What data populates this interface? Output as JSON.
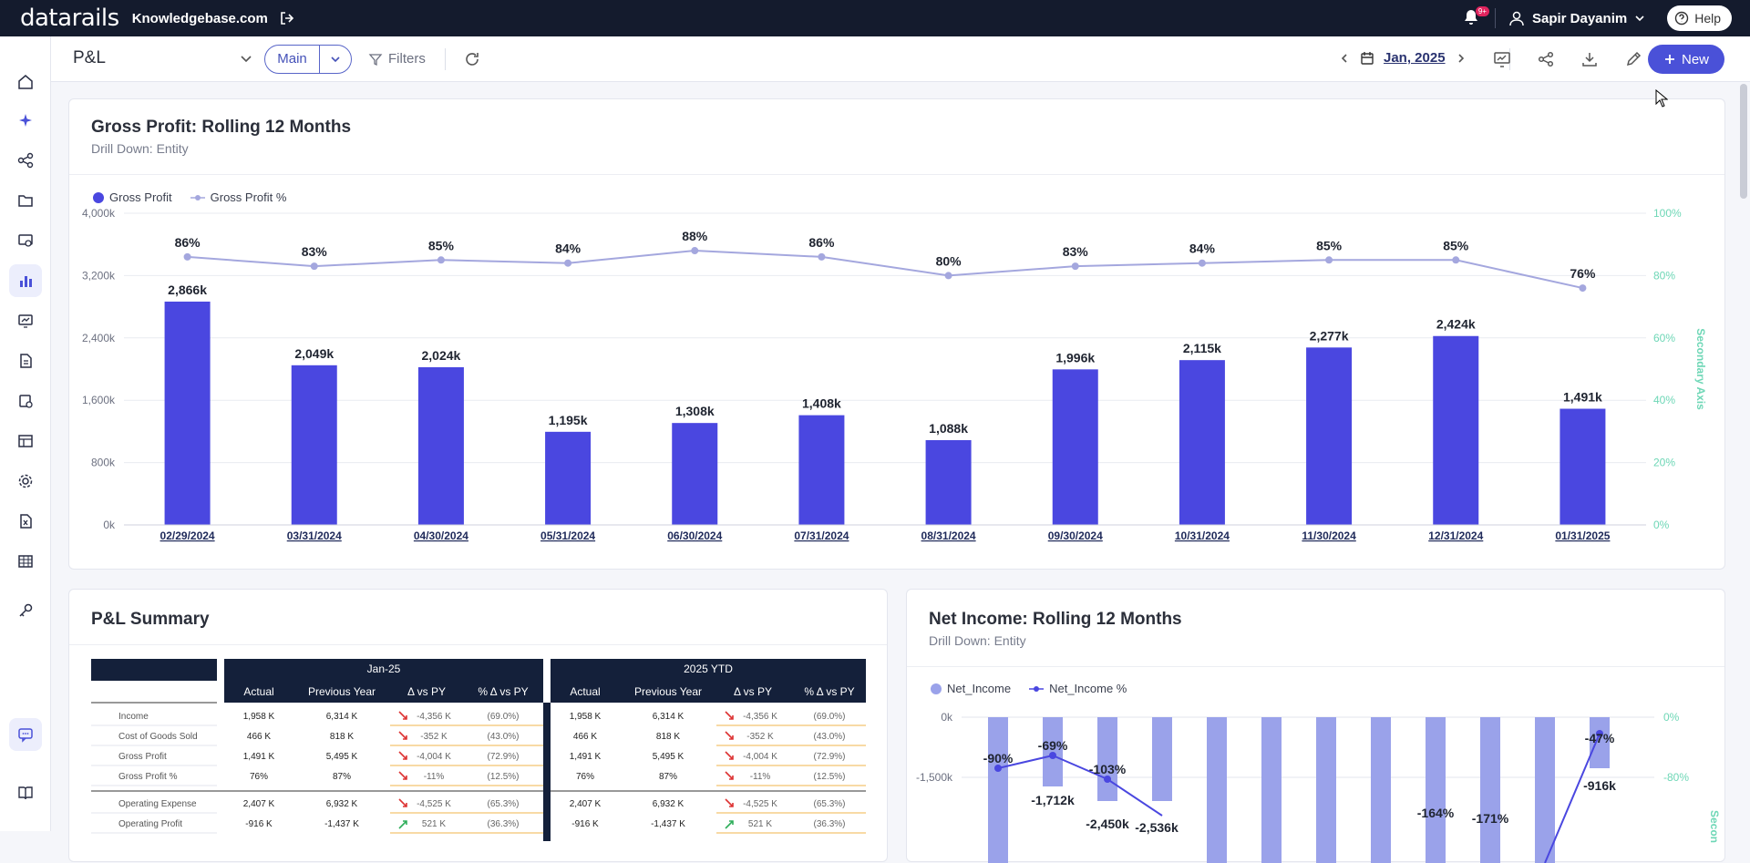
{
  "topbar": {
    "brand": "datarails",
    "site": "Knowledgebase.com",
    "notification_badge": "9+",
    "user_name": "Sapir Dayanim",
    "help_label": "Help"
  },
  "sidebar": {
    "items": [
      "home-icon",
      "sparkle-icon",
      "nodes-icon",
      "folder-icon",
      "monitor-gear-icon",
      "chart-icon",
      "presentation-icon",
      "report-icon",
      "report-gear-icon",
      "table-icon",
      "settings-icon",
      "excel-icon",
      "grid-icon",
      "key-icon",
      "chat-icon",
      "book-icon"
    ],
    "active_item": "chart-icon"
  },
  "toolbar": {
    "page_title": "P&L",
    "main_label": "Main",
    "filters_label": "Filters",
    "date_label": "Jan, 2025",
    "new_label": "New"
  },
  "gross_profit_card": {
    "title": "Gross Profit: Rolling 12 Months",
    "subtitle": "Drill Down: Entity",
    "legend": [
      "Gross Profit",
      "Gross Profit %"
    ],
    "secondary_axis_label": "Secondary Axis",
    "bar_color": "#4a47e0",
    "line_color": "#a4a7de"
  },
  "pl_summary": {
    "title": "P&L Summary",
    "group_headers": [
      "Jan-25",
      "2025 YTD"
    ],
    "columns": [
      "Actual",
      "Previous Year",
      "Δ vs PY",
      "% Δ vs PY"
    ],
    "rows": [
      {
        "label": "Income",
        "month": [
          "1,958 K",
          "6,314 K",
          "-4,356 K",
          "(69.0%)"
        ],
        "ytd": [
          "1,958 K",
          "6,314 K",
          "-4,356 K",
          "(69.0%)"
        ],
        "trend": "down"
      },
      {
        "label": "Cost of Goods Sold",
        "month": [
          "466 K",
          "818 K",
          "-352 K",
          "(43.0%)"
        ],
        "ytd": [
          "466 K",
          "818 K",
          "-352 K",
          "(43.0%)"
        ],
        "trend": "down"
      },
      {
        "label": "Gross Profit",
        "month": [
          "1,491 K",
          "5,495 K",
          "-4,004 K",
          "(72.9%)"
        ],
        "ytd": [
          "1,491 K",
          "5,495 K",
          "-4,004 K",
          "(72.9%)"
        ],
        "trend": "down"
      },
      {
        "label": "Gross Profit %",
        "month": [
          "76%",
          "87%",
          "-11%",
          "(12.5%)"
        ],
        "ytd": [
          "76%",
          "87%",
          "-11%",
          "(12.5%)"
        ],
        "trend": "down"
      },
      {
        "label": "Operating Expense",
        "month": [
          "2,407 K",
          "6,932 K",
          "-4,525 K",
          "(65.3%)"
        ],
        "ytd": [
          "2,407 K",
          "6,932 K",
          "-4,525 K",
          "(65.3%)"
        ],
        "trend": "down"
      },
      {
        "label": "Operating Profit",
        "month": [
          "-916 K",
          "-1,437 K",
          "521 K",
          "(36.3%)"
        ],
        "ytd": [
          "-916 K",
          "-1,437 K",
          "521 K",
          "(36.3%)"
        ],
        "trend": "up"
      }
    ]
  },
  "net_income_card": {
    "title": "Net Income: Rolling 12 Months",
    "subtitle": "Drill Down: Entity",
    "legend": [
      "Net_Income",
      "Net_Income %"
    ],
    "secondary_axis_label": "Secon",
    "bar_color": "#9aa2ea",
    "line_color": "#4a47e0"
  },
  "chart_data": [
    {
      "type": "bar",
      "title": "Gross Profit: Rolling 12 Months",
      "categories": [
        "02/29/2024",
        "03/31/2024",
        "04/30/2024",
        "05/31/2024",
        "06/30/2024",
        "07/31/2024",
        "08/31/2024",
        "09/30/2024",
        "10/31/2024",
        "11/30/2024",
        "12/31/2024",
        "01/31/2025"
      ],
      "series": [
        {
          "name": "Gross Profit",
          "type": "bar",
          "values": [
            2866,
            2049,
            2024,
            1195,
            1308,
            1408,
            1088,
            1996,
            2115,
            2277,
            2424,
            1491
          ],
          "labels": [
            "2,866k",
            "2,049k",
            "2,024k",
            "1,195k",
            "1,308k",
            "1,408k",
            "1,088k",
            "1,996k",
            "2,115k",
            "2,277k",
            "2,424k",
            "1,491k"
          ]
        },
        {
          "name": "Gross Profit %",
          "type": "line",
          "axis": "secondary",
          "values": [
            86,
            83,
            85,
            84,
            88,
            86,
            80,
            83,
            84,
            85,
            85,
            76
          ],
          "labels": [
            "86%",
            "83%",
            "85%",
            "84%",
            "88%",
            "86%",
            "80%",
            "83%",
            "84%",
            "85%",
            "85%",
            "76%"
          ]
        }
      ],
      "ylim": [
        0,
        4000
      ],
      "y_ticks": [
        "0k",
        "800k",
        "1,600k",
        "2,400k",
        "3,200k",
        "4,000k"
      ],
      "y2lim": [
        0,
        100
      ],
      "y2_ticks": [
        "0%",
        "20%",
        "40%",
        "60%",
        "80%",
        "100%"
      ],
      "y2label": "Secondary Axis",
      "legend_position": "top-left",
      "grid": true
    },
    {
      "type": "bar",
      "title": "Net Income: Rolling 12 Months",
      "series": [
        {
          "name": "Net_Income",
          "type": "bar",
          "visible_labels": [
            "-1,712k",
            "-2,450k",
            "-2,536k",
            "-916k"
          ]
        },
        {
          "name": "Net_Income %",
          "type": "line",
          "axis": "secondary",
          "visible_labels": [
            "-90%",
            "-69%",
            "-103%",
            "-164%",
            "-171%",
            "-47%"
          ]
        }
      ],
      "y_ticks": [
        "0k",
        "-1,500k"
      ],
      "y2_ticks": [
        "0%",
        "-80%"
      ],
      "legend_position": "top-left"
    }
  ]
}
